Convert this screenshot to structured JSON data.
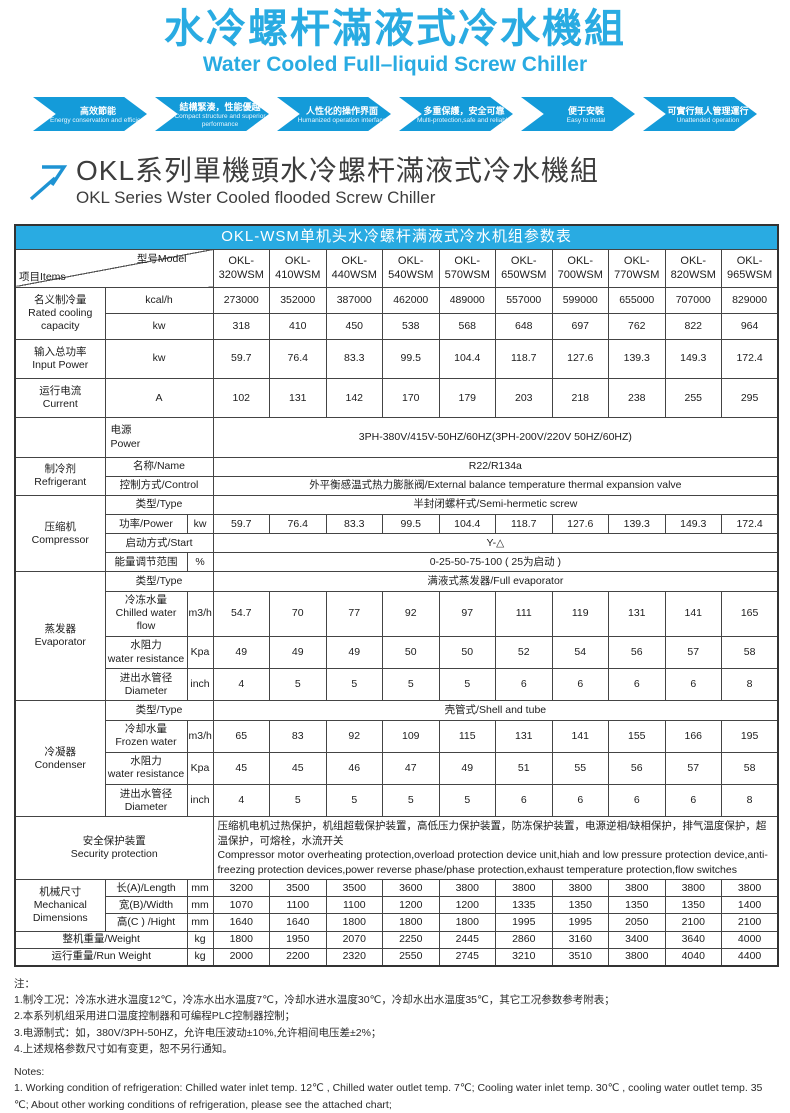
{
  "colors": {
    "accent": "#29abe2",
    "arrow_blue": "#149bd9",
    "table_border": "#444444",
    "heading_text": "#3d3d3d"
  },
  "header": {
    "title_cn": "水冷螺杆滿液式冷水機組",
    "title_en": "Water Cooled Full–liquid Screw Chiller"
  },
  "features": [
    {
      "cn": "高效節能",
      "en": "Energy conservation and efficient"
    },
    {
      "cn": "結構緊湊，性能優越",
      "en": "Compact structure and superior performance"
    },
    {
      "cn": "人性化的操作界面",
      "en": "Humanized operation interface"
    },
    {
      "cn": "多重保護，安全可靠",
      "en": "Multi-protection,safe and reliable"
    },
    {
      "cn": "便于安裝",
      "en": "Easy to instal"
    },
    {
      "cn": "可實行無人管理運行",
      "en": "Unattended operation"
    }
  ],
  "section": {
    "title_cn": "OKL系列單機頭水冷螺杆滿液式冷水機組",
    "title_en": "OKL Series Wster Cooled flooded Screw Chiller"
  },
  "table": {
    "title": "OKL-WSM单机头水冷螺杆满液式冷水机组参数表",
    "corner": {
      "top": "型号Model",
      "bottom": "项目Items"
    },
    "models": [
      "OKL-320WSM",
      "OKL-410WSM",
      "OKL-440WSM",
      "OKL-540WSM",
      "OKL-570WSM",
      "OKL-650WSM",
      "OKL-700WSM",
      "OKL-770WSM",
      "OKL-820WSM",
      "OKL-965WSM"
    ],
    "groups": [
      {
        "cat": "名义制冷量\nRated cooling\ncapacity",
        "rows": [
          {
            "label": "kcal/h",
            "tall": true,
            "values": [
              "273000",
              "352000",
              "387000",
              "462000",
              "489000",
              "557000",
              "599000",
              "655000",
              "707000",
              "829000"
            ]
          },
          {
            "label": "kw",
            "tall": true,
            "values": [
              "318",
              "410",
              "450",
              "538",
              "568",
              "648",
              "697",
              "762",
              "822",
              "964"
            ]
          }
        ]
      },
      {
        "cat": "输入总功率\nInput Power",
        "rows": [
          {
            "label": "kw",
            "tall": true,
            "values": [
              "59.7",
              "76.4",
              "83.3",
              "99.5",
              "104.4",
              "118.7",
              "127.6",
              "139.3",
              "149.3",
              "172.4"
            ]
          }
        ]
      },
      {
        "cat": "运行电流\nCurrent",
        "rows": [
          {
            "label": "A",
            "tall": true,
            "values": [
              "102",
              "131",
              "142",
              "170",
              "179",
              "203",
              "218",
              "238",
              "255",
              "295"
            ]
          }
        ]
      },
      {
        "cat": "",
        "rows": [
          {
            "label": "电源\nPower",
            "left": true,
            "tall": true,
            "merged": "3PH-380V/415V-50HZ/60HZ(3PH-200V/220V 50HZ/60HZ)"
          }
        ]
      },
      {
        "cat": "制冷剂\nRefrigerant",
        "rows": [
          {
            "label": "名称/Name",
            "merged": "R22/R134a"
          },
          {
            "label": "控制方式/Control",
            "merged": "外平衡感温式热力膨胀阀/External balance temperature thermal expansion valve"
          }
        ]
      },
      {
        "cat": "压缩机\nCompressor",
        "rows": [
          {
            "label": "类型/Type",
            "merged": "半封闭螺杆式/Semi-hermetic screw"
          },
          {
            "label": "功率/Power",
            "unit": "kw",
            "values": [
              "59.7",
              "76.4",
              "83.3",
              "99.5",
              "104.4",
              "118.7",
              "127.6",
              "139.3",
              "149.3",
              "172.4"
            ]
          },
          {
            "label": "启动方式/Start",
            "merged": "Y-△"
          },
          {
            "label": "能量调节范围",
            "unit": "%",
            "merged": "0-25-50-75-100 ( 25为启动 )"
          }
        ]
      },
      {
        "cat": "蒸发器\nEvaporator",
        "rows": [
          {
            "label": "类型/Type",
            "merged": "满液式蒸发器/Full evaporator"
          },
          {
            "label": "冷冻水量\nChilled water flow",
            "unit": "m3/h",
            "values": [
              "54.7",
              "70",
              "77",
              "92",
              "97",
              "111",
              "119",
              "131",
              "141",
              "165"
            ]
          },
          {
            "label": "水阻力\nwater resistance",
            "unit": "Kpa",
            "values": [
              "49",
              "49",
              "49",
              "50",
              "50",
              "52",
              "54",
              "56",
              "57",
              "58"
            ]
          },
          {
            "label": "进出水管径\nDiameter",
            "unit": "inch",
            "values": [
              "4",
              "5",
              "5",
              "5",
              "5",
              "6",
              "6",
              "6",
              "6",
              "8"
            ]
          }
        ]
      },
      {
        "cat": "冷凝器\nCondenser",
        "rows": [
          {
            "label": "类型/Type",
            "merged": "壳管式/Shell and tube"
          },
          {
            "label": "冷却水量\nFrozen water",
            "unit": "m3/h",
            "values": [
              "65",
              "83",
              "92",
              "109",
              "115",
              "131",
              "141",
              "155",
              "166",
              "195"
            ]
          },
          {
            "label": "水阻力\nwater resistance",
            "unit": "Kpa",
            "values": [
              "45",
              "45",
              "46",
              "47",
              "49",
              "51",
              "55",
              "56",
              "57",
              "58"
            ]
          },
          {
            "label": "进出水管径\nDiameter",
            "unit": "inch",
            "values": [
              "4",
              "5",
              "5",
              "5",
              "5",
              "6",
              "6",
              "6",
              "6",
              "8"
            ]
          }
        ]
      },
      {
        "cat": "安全保护装置\nSecurity protection",
        "cat_cols": 3,
        "rows": [
          {
            "paras": [
              "压缩机电机过热保护，机组超载保护装置，高低压力保护装置，防冻保护装置，电源逆相/缺相保护，排气温度保护，超温保护，可熔栓，水流开关",
              "Compressor motor overheating protection,overload protection device unit,hiah and low pressure protection device,anti-freezing protection devices,power reverse phase/phase protection,exhaust temperature protection,flow switches"
            ]
          }
        ]
      },
      {
        "cat": "机械尺寸\nMechanical\nDimensions",
        "rows": [
          {
            "label": "长(A)/Length",
            "unit": "mm",
            "compact": true,
            "values": [
              "3200",
              "3500",
              "3500",
              "3600",
              "3800",
              "3800",
              "3800",
              "3800",
              "3800",
              "3800"
            ]
          },
          {
            "label": "宽(B)/Width",
            "unit": "mm",
            "compact": true,
            "values": [
              "1070",
              "1100",
              "1100",
              "1200",
              "1200",
              "1335",
              "1350",
              "1350",
              "1350",
              "1400"
            ]
          },
          {
            "label": "高(C ) /Hight",
            "unit": "mm",
            "compact": true,
            "values": [
              "1640",
              "1640",
              "1800",
              "1800",
              "1800",
              "1995",
              "1995",
              "2050",
              "2100",
              "2100"
            ]
          }
        ]
      },
      {
        "rows": [
          {
            "label": "整机重量/Weight",
            "label_cols": 2,
            "unit": "kg",
            "compact": true,
            "values": [
              "1800",
              "1950",
              "2070",
              "2250",
              "2445",
              "2860",
              "3160",
              "3400",
              "3640",
              "4000"
            ]
          }
        ]
      },
      {
        "rows": [
          {
            "label": "运行重量/Run Weight",
            "label_cols": 2,
            "unit": "kg",
            "compact": true,
            "values": [
              "2000",
              "2200",
              "2320",
              "2550",
              "2745",
              "3210",
              "3510",
              "3800",
              "4040",
              "4400"
            ]
          }
        ]
      }
    ]
  },
  "notes": {
    "cn_title": "注：",
    "cn": [
      "1.制冷工况：冷冻水进水温度12℃，冷冻水出水温度7℃，冷却水进水温度30℃，冷却水出水温度35℃，其它工况参数参考附表；",
      "2.本系列机组采用进口温度控制器和可编程PLC控制器控制；",
      "3.电源制式：如，380V/3PH-50HZ，允许电压波动±10%,允许相间电压差±2%；",
      "4.上述规格参数尺寸如有变更，恕不另行通知。"
    ],
    "en_title": "Notes:",
    "en": [
      "1. Working condition of refrigeration: Chilled water inlet temp. 12℃ , Chilled water outlet temp. 7℃; Cooling water inlet temp. 30℃ , cooling water outlet temp. 35",
      "℃; About other working conditions of refrigeration, please see the attached chart;"
    ]
  }
}
